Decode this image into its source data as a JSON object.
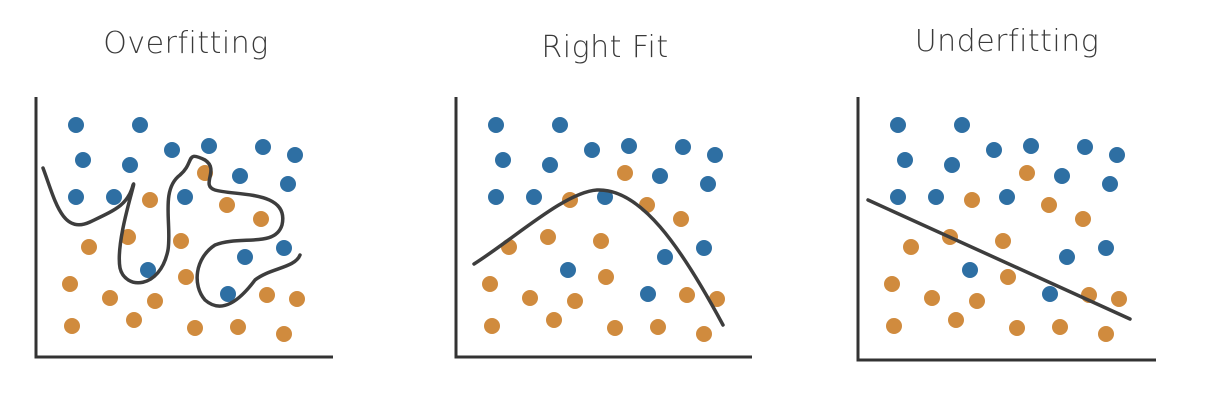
{
  "panels": [
    {
      "title": "Overfitting",
      "fit": "overfit"
    },
    {
      "title": "Right Fit",
      "fit": "right"
    },
    {
      "title": "Underfitting",
      "fit": "under"
    }
  ],
  "colors": {
    "blue": "#2e6fa3",
    "orange": "#d08b3e",
    "axis": "#333333",
    "curve": "#3d3d3d"
  }
}
